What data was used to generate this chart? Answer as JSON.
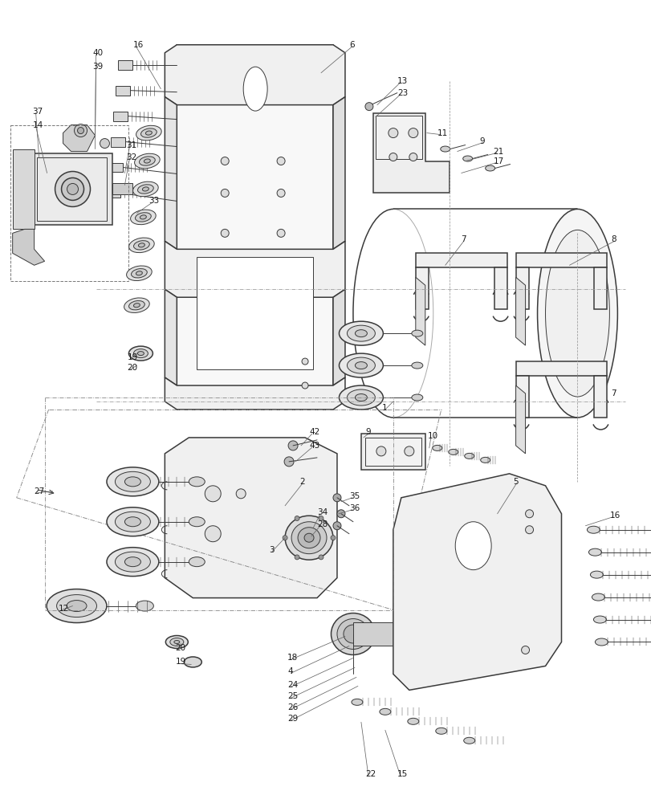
{
  "bg": "#ffffff",
  "lc": "#3a3a3a",
  "tc": "#1a1a1a",
  "fig_w": 8.12,
  "fig_h": 10.0,
  "dpi": 100
}
